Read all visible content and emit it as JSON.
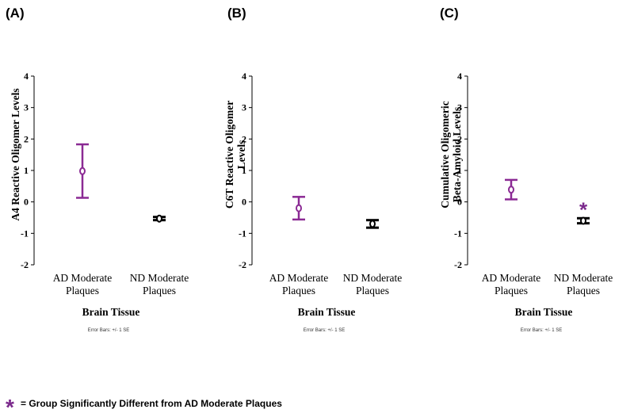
{
  "legend": {
    "star_symbol": "*",
    "text": "= Group Significantly Different from AD Moderate Plaques",
    "star_color": "#7B2A8C"
  },
  "colors": {
    "ad": "#8B2A94",
    "nd": "#000000"
  },
  "chart_data": [
    {
      "type": "errorbar",
      "panel": "(A)",
      "ylabel": [
        "A4 Reactive Oligomer Levels"
      ],
      "xlabel": "Brain Tissue",
      "note": "Error Bars: +/- 1 SE",
      "ylim": [
        -2,
        4
      ],
      "yticks": [
        "-2",
        "-1",
        "0",
        "1",
        "2",
        "3",
        "4"
      ],
      "categories": [
        [
          "AD Moderate",
          "Plaques"
        ],
        [
          "ND Moderate",
          "Plaques"
        ]
      ],
      "means": [
        0.98,
        -0.53
      ],
      "lower": [
        0.13,
        -0.58
      ],
      "upper": [
        1.83,
        -0.48
      ],
      "significant": [
        false,
        false
      ]
    },
    {
      "type": "errorbar",
      "panel": "(B)",
      "ylabel": [
        "C6T Reactive Oligomer",
        "Levels"
      ],
      "xlabel": "Brain Tissue",
      "note": "Error Bars: +/- 1 SE",
      "ylim": [
        -2,
        4
      ],
      "yticks": [
        "-2",
        "-1",
        "0",
        "1",
        "2",
        "3",
        "4"
      ],
      "categories": [
        [
          "AD Moderate",
          "Plaques"
        ],
        [
          "ND Moderate",
          "Plaques"
        ]
      ],
      "means": [
        -0.2,
        -0.7
      ],
      "lower": [
        -0.56,
        -0.82
      ],
      "upper": [
        0.16,
        -0.58
      ],
      "significant": [
        false,
        false
      ]
    },
    {
      "type": "errorbar",
      "panel": "(C)",
      "ylabel": [
        "Cumulative Oligomeric",
        "Beta-Amyloid Levels"
      ],
      "xlabel": "Brain Tissue",
      "note": "Error Bars: +/- 1 SE",
      "ylim": [
        -2,
        4
      ],
      "yticks": [
        "-2",
        "-1",
        "0",
        "1",
        "2",
        "3",
        "4"
      ],
      "categories": [
        [
          "AD Moderate",
          "Plaques"
        ],
        [
          "ND Moderate",
          "Plaques"
        ]
      ],
      "means": [
        0.39,
        -0.6
      ],
      "lower": [
        0.08,
        -0.68
      ],
      "upper": [
        0.7,
        -0.52
      ],
      "significant": [
        false,
        true
      ]
    }
  ]
}
